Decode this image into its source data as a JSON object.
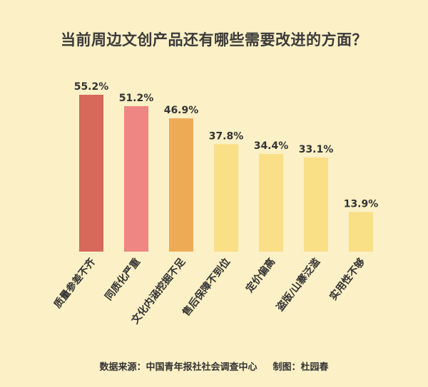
{
  "chart_data": {
    "type": "bar",
    "title": "当前周边文创产品还有哪些需要改进的方面？",
    "categories": [
      "质量参差不齐",
      "同质化严重",
      "文化内涵挖掘不足",
      "售后保障不到位",
      "定价偏高",
      "盗版/山寨泛滥",
      "实用性不够"
    ],
    "values": [
      55.2,
      51.2,
      46.9,
      37.8,
      34.4,
      33.1,
      13.9
    ],
    "value_labels": [
      "55.2%",
      "51.2%",
      "46.9%",
      "37.8%",
      "34.4%",
      "33.1%",
      "13.9%"
    ],
    "colors": [
      "#d6695a",
      "#ee8684",
      "#eeab56",
      "#f9df86",
      "#f9df86",
      "#f9df86",
      "#f9df86"
    ],
    "ylim": [
      0,
      55.2
    ],
    "grid": false,
    "legend": "none"
  },
  "footer": {
    "source": "数据来源：中国青年报社社会调查中心",
    "credit": "制图：杜园春"
  }
}
